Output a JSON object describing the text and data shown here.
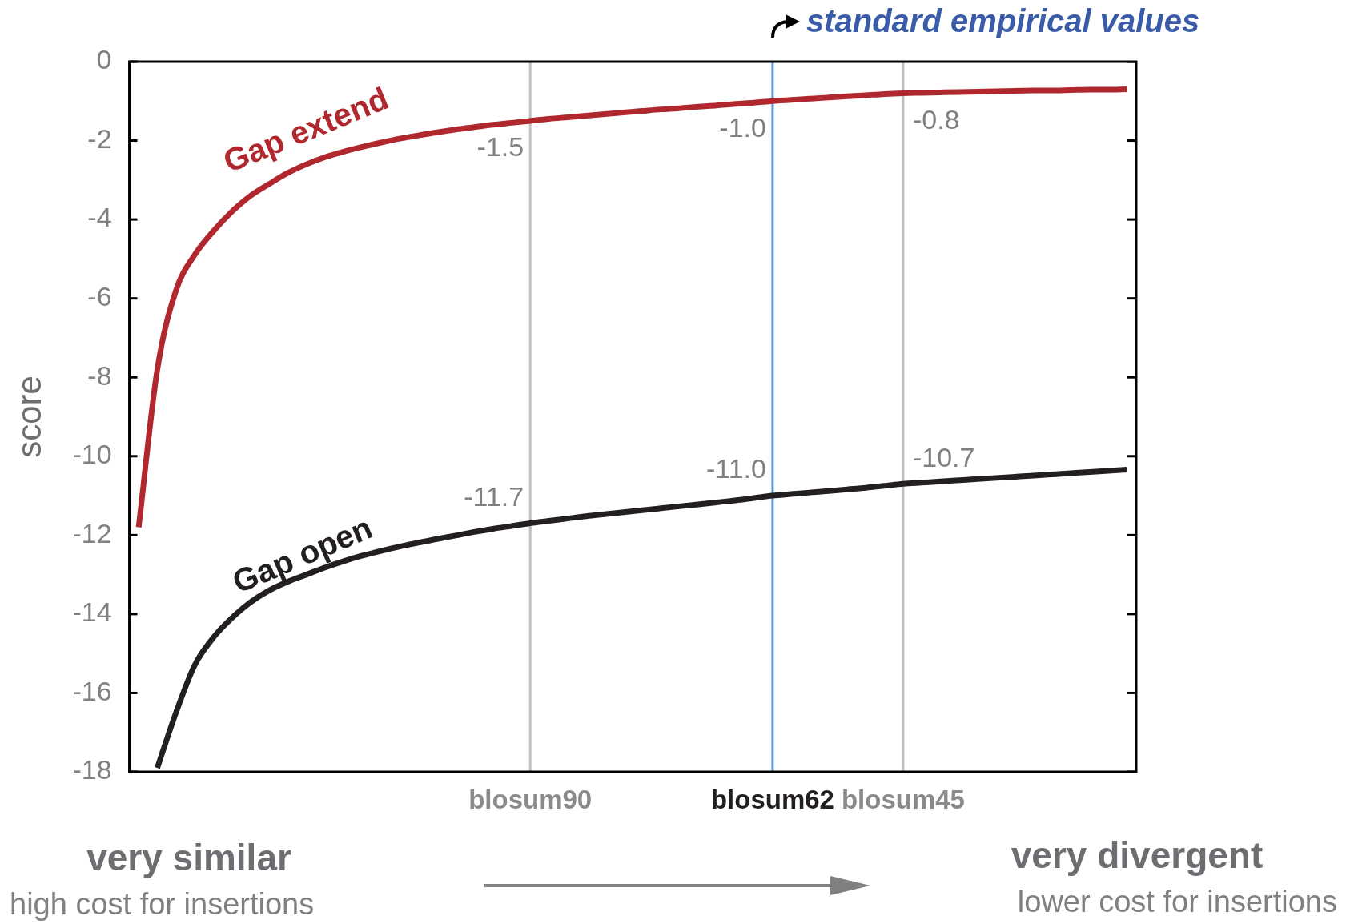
{
  "chart_data": {
    "type": "line",
    "ylabel": "score",
    "categories": [
      null,
      null,
      null,
      null,
      null,
      null,
      null,
      null,
      null,
      null,
      null,
      null,
      null,
      null,
      null,
      null,
      null,
      null,
      null,
      null,
      null,
      "blosum90",
      null,
      null,
      null,
      null,
      null,
      null,
      null,
      null,
      null,
      null,
      null,
      null,
      "blosum62",
      null,
      null,
      null,
      null,
      null,
      null,
      "blosum45",
      null,
      null,
      null,
      null,
      null,
      null,
      null,
      null,
      null,
      null,
      null,
      null
    ],
    "series": [
      {
        "name": "Gap extend",
        "color": "#b0282e",
        "values": [
          -11.8,
          -7.8,
          -5.8,
          -4.9,
          -4.3,
          -3.8,
          -3.4,
          -3.1,
          -2.82,
          -2.6,
          -2.42,
          -2.28,
          -2.16,
          -2.05,
          -1.95,
          -1.87,
          -1.79,
          -1.72,
          -1.66,
          -1.6,
          -1.55,
          -1.5,
          -1.45,
          -1.41,
          -1.37,
          -1.33,
          -1.29,
          -1.25,
          -1.21,
          -1.18,
          -1.14,
          -1.11,
          -1.07,
          -1.04,
          -1.0,
          -0.97,
          -0.94,
          -0.91,
          -0.88,
          -0.85,
          -0.82,
          -0.8,
          -0.79,
          -0.78,
          -0.77,
          -0.76,
          -0.75,
          -0.74,
          -0.73,
          -0.73,
          -0.72,
          -0.71,
          -0.71,
          -0.7
        ],
        "value_labels": [
          null,
          null,
          null,
          null,
          null,
          null,
          null,
          null,
          null,
          null,
          null,
          null,
          null,
          null,
          null,
          null,
          null,
          null,
          null,
          null,
          null,
          "-1.5",
          null,
          null,
          null,
          null,
          null,
          null,
          null,
          null,
          null,
          null,
          null,
          null,
          "-1.0",
          null,
          null,
          null,
          null,
          null,
          null,
          "-0.8",
          null,
          null,
          null,
          null,
          null,
          null,
          null,
          null,
          null,
          null,
          null,
          null
        ]
      },
      {
        "name": "Gap open",
        "color": "#231f20",
        "values": [
          null,
          -17.9,
          -16.5,
          -15.3,
          -14.6,
          -14.1,
          -13.7,
          -13.4,
          -13.18,
          -13.0,
          -12.82,
          -12.66,
          -12.52,
          -12.4,
          -12.29,
          -12.19,
          -12.1,
          -12.01,
          -11.92,
          -11.84,
          -11.77,
          -11.7,
          -11.64,
          -11.58,
          -11.52,
          -11.47,
          -11.42,
          -11.37,
          -11.32,
          -11.27,
          -11.22,
          -11.17,
          -11.12,
          -11.06,
          -11.0,
          -10.96,
          -10.92,
          -10.88,
          -10.84,
          -10.8,
          -10.75,
          -10.7,
          -10.67,
          -10.64,
          -10.61,
          -10.58,
          -10.55,
          -10.52,
          -10.49,
          -10.46,
          -10.43,
          -10.4,
          -10.37,
          -10.34
        ],
        "value_labels": [
          null,
          null,
          null,
          null,
          null,
          null,
          null,
          null,
          null,
          null,
          null,
          null,
          null,
          null,
          null,
          null,
          null,
          null,
          null,
          null,
          null,
          "-11.7",
          null,
          null,
          null,
          null,
          null,
          null,
          null,
          null,
          null,
          null,
          null,
          null,
          "-11.0",
          null,
          null,
          null,
          null,
          null,
          null,
          "-10.7",
          null,
          null,
          null,
          null,
          null,
          null,
          null,
          null,
          null,
          null,
          null,
          null
        ]
      }
    ],
    "ylim": [
      -18,
      0
    ],
    "yticks": [
      -18,
      -16,
      -14,
      -12,
      -10,
      -8,
      -6,
      -4,
      -2,
      0
    ],
    "ref_lines": [
      {
        "axis": "x",
        "value": "blosum90",
        "color": "#c0c0c0"
      },
      {
        "axis": "x",
        "value": "blosum62",
        "color": "#5b9bd5"
      },
      {
        "axis": "x",
        "value": "blosum45",
        "color": "#c0c0c0"
      }
    ],
    "annotations": [
      "standard empirical values",
      "very similar",
      "high cost for insertions",
      "very divergent",
      "lower cost for insertions"
    ],
    "grid": false,
    "legend": false,
    "marker": "none",
    "line_style": "solid"
  }
}
